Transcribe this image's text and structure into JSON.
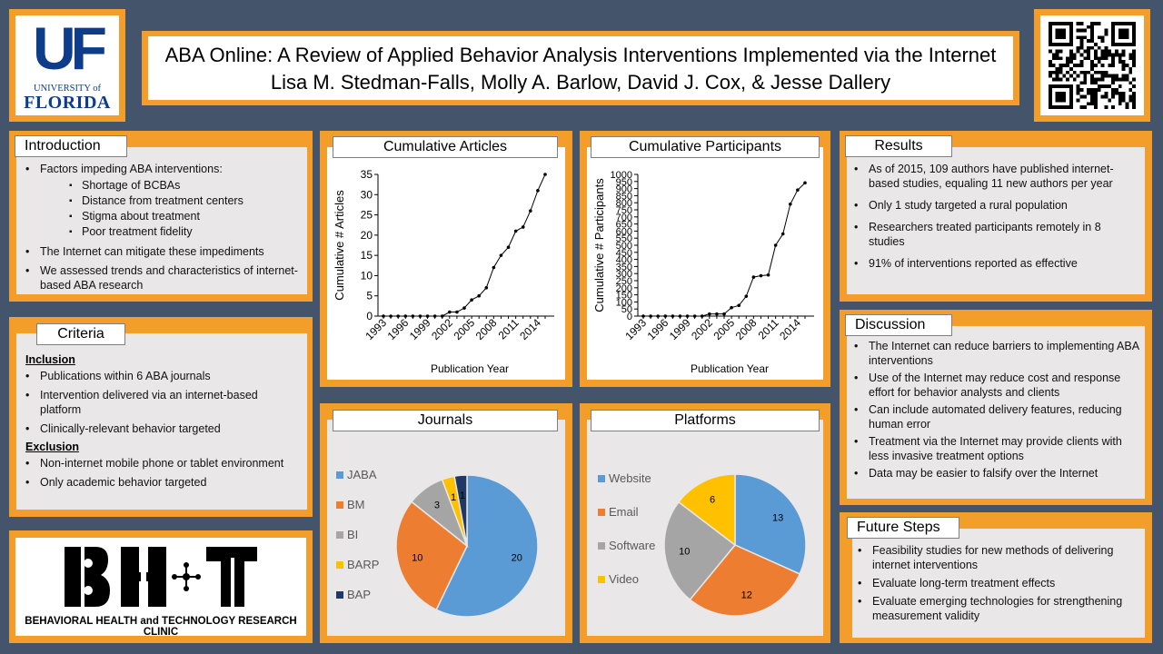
{
  "header": {
    "title": "ABA Online:  A Review of Applied Behavior Analysis Interventions Implemented via the Internet",
    "authors": "Lisa M. Stedman-Falls, Molly A. Barlow, David J. Cox, & Jesse Dallery"
  },
  "logo": {
    "letters": "UF",
    "line1": "UNIVERSITY of",
    "line2": "FLORIDA",
    "color": "#0d3d8a"
  },
  "qr_code": {
    "icon": "qr-code-icon"
  },
  "introduction": {
    "title": "Introduction",
    "lead": "Factors impeding ABA interventions:",
    "factors": [
      "Shortage of BCBAs",
      "Distance from treatment centers",
      "Stigma about treatment",
      "Poor treatment fidelity"
    ],
    "points": [
      "The Internet can mitigate these impediments",
      "We assessed trends and characteristics of internet-based ABA research"
    ]
  },
  "criteria": {
    "title": "Criteria",
    "inclusion_label": "Inclusion",
    "inclusion": [
      "Publications within 6 ABA journals",
      "Intervention delivered via an internet-based platform",
      "Clinically-relevant behavior targeted"
    ],
    "exclusion_label": "Exclusion",
    "exclusion": [
      "Non-internet mobile phone or tablet environment",
      "Only academic behavior targeted"
    ]
  },
  "clinic": {
    "logo_text": "BH+T",
    "name": "BEHAVIORAL HEALTH and TECHNOLOGY RESEARCH CLINIC"
  },
  "results": {
    "title": "Results",
    "points": [
      "As of 2015,  109  authors have published internet-based studies, equaling 11 new authors per year",
      "Only 1 study targeted a rural population",
      "Researchers treated participants remotely in 8 studies",
      "91% of interventions reported as effective"
    ]
  },
  "discussion": {
    "title": "Discussion",
    "points": [
      "The Internet can reduce barriers to implementing ABA interventions",
      "Use of the Internet may reduce cost and response effort for behavior analysts and clients",
      "Can include automated delivery features, reducing human error",
      "Treatment via the Internet may provide clients with less invasive treatment options",
      "Data may be easier to falsify over the Internet"
    ]
  },
  "future": {
    "title": "Future Steps",
    "points": [
      "Feasibility studies for new methods of delivering internet interventions",
      "Evaluate long-term treatment effects",
      "Evaluate emerging technologies for strengthening measurement validity"
    ]
  },
  "chart_data": [
    {
      "type": "line",
      "title": "Cumulative Articles",
      "xlabel": "Publication Year",
      "ylabel": "Cumulative # Articles",
      "x": [
        1993,
        1994,
        1995,
        1996,
        1997,
        1998,
        1999,
        2000,
        2001,
        2002,
        2003,
        2004,
        2005,
        2006,
        2007,
        2008,
        2009,
        2010,
        2011,
        2012,
        2013,
        2014,
        2015
      ],
      "y": [
        0,
        0,
        0,
        0,
        0,
        0,
        0,
        0,
        0,
        1,
        1,
        2,
        4,
        5,
        7,
        12,
        15,
        17,
        21,
        22,
        26,
        31,
        35
      ],
      "xticks": [
        "1993",
        "1996",
        "1999",
        "2002",
        "2005",
        "2008",
        "2011",
        "2014"
      ],
      "yticks": [
        0,
        5,
        10,
        15,
        20,
        25,
        30,
        35
      ],
      "ylim": [
        0,
        35
      ],
      "grid": false
    },
    {
      "type": "line",
      "title": "Cumulative Participants",
      "xlabel": "Publication Year",
      "ylabel": "Cumulative # Participants",
      "x": [
        1993,
        1994,
        1995,
        1996,
        1997,
        1998,
        1999,
        2000,
        2001,
        2002,
        2003,
        2004,
        2005,
        2006,
        2007,
        2008,
        2009,
        2010,
        2011,
        2012,
        2013,
        2014,
        2015
      ],
      "y": [
        0,
        0,
        0,
        0,
        0,
        0,
        0,
        0,
        0,
        15,
        15,
        15,
        60,
        75,
        140,
        275,
        285,
        290,
        500,
        580,
        790,
        890,
        940
      ],
      "xticks": [
        "1993",
        "1996",
        "1999",
        "2002",
        "2005",
        "2008",
        "2011",
        "2014"
      ],
      "yticks": [
        0,
        50,
        100,
        150,
        200,
        250,
        300,
        350,
        400,
        450,
        500,
        550,
        600,
        650,
        700,
        750,
        800,
        850,
        900,
        950,
        1000
      ],
      "ylim": [
        0,
        1000
      ],
      "grid": false
    },
    {
      "type": "pie",
      "title": "Journals",
      "labels": [
        "JABA",
        "BM",
        "BI",
        "BARP",
        "BAP"
      ],
      "values": [
        20,
        10,
        3,
        1,
        1
      ],
      "colors": [
        "#5b9bd5",
        "#ed7d31",
        "#a5a5a5",
        "#ffc000",
        "#1f3864"
      ],
      "legend": "left"
    },
    {
      "type": "pie",
      "title": "Platforms",
      "labels": [
        "Website",
        "Email",
        "Software",
        "Video"
      ],
      "values": [
        13,
        12,
        10,
        6
      ],
      "colors": [
        "#5b9bd5",
        "#ed7d31",
        "#a5a5a5",
        "#ffc000"
      ],
      "legend": "left"
    }
  ]
}
